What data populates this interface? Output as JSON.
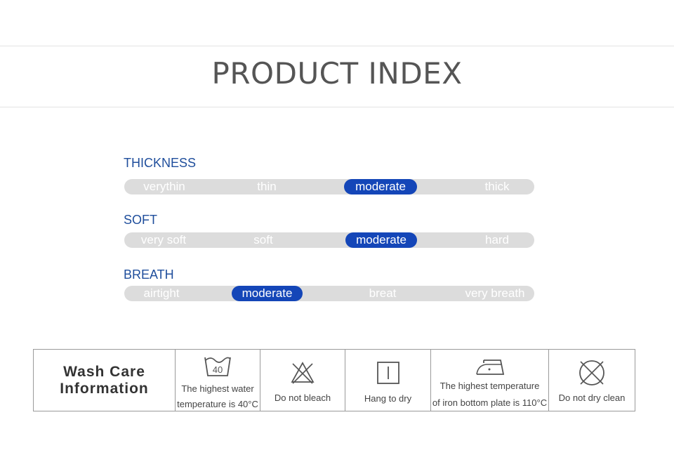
{
  "page": {
    "title": "PRODUCT INDEX"
  },
  "indices": [
    {
      "label": "THICKNESS",
      "options": [
        "verythin",
        "thin",
        "moderate",
        "thick"
      ],
      "selected": 2
    },
    {
      "label": "SOFT",
      "options": [
        "very soft",
        "soft",
        "moderate",
        "hard"
      ],
      "selected": 2
    },
    {
      "label": "BREATH",
      "options": [
        "airtight",
        "moderate",
        "breat",
        "very breath"
      ],
      "selected": 1
    }
  ],
  "colors": {
    "accent": "#1446b8",
    "label": "#1f4e9c",
    "track": "#dcdcdc"
  },
  "wash_care": {
    "title_line1": "Wash Care",
    "title_line2": "Information",
    "items": [
      {
        "icon": "wash-40-icon",
        "wash_temp": "40",
        "line1": "The highest water",
        "line2": "temperature is 40°C"
      },
      {
        "icon": "no-bleach-icon",
        "line1": "Do not bleach"
      },
      {
        "icon": "hang-dry-icon",
        "line1": "Hang to dry"
      },
      {
        "icon": "iron-icon",
        "line1": "The highest temperature",
        "line2": "of iron bottom plate is 110°C"
      },
      {
        "icon": "no-dry-clean-icon",
        "line1": "Do not dry clean"
      }
    ]
  }
}
